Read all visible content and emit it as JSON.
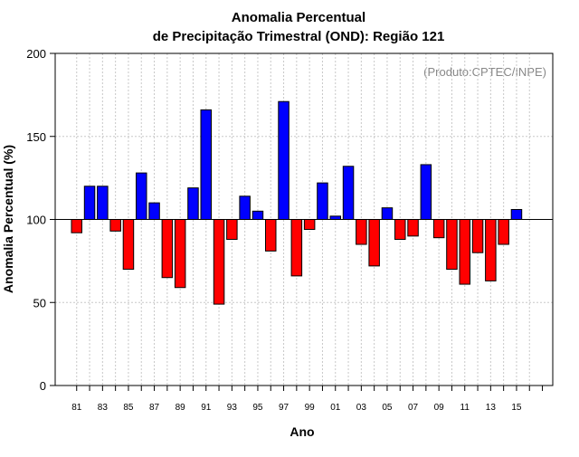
{
  "chart_data": {
    "type": "bar",
    "title": "Anomalia Percentual",
    "subtitle": "de Precipitação Trimestral (OND): Região 121",
    "xlabel": "Ano",
    "ylabel": "Anomalia Percentual (%)",
    "annotation": "(Produto:CPTEC/INPE)",
    "ylim": [
      0,
      200
    ],
    "yticks": [
      "0",
      "50",
      "100",
      "150",
      "200"
    ],
    "baseline": 100,
    "grid": true,
    "colors": {
      "above": "#0000ff",
      "below": "#ff0000",
      "grid": "#c8c8c8"
    },
    "categories": [
      "1981",
      "1982",
      "1983",
      "1984",
      "1985",
      "1986",
      "1987",
      "1988",
      "1989",
      "1990",
      "1991",
      "1992",
      "1993",
      "1994",
      "1995",
      "1996",
      "1997",
      "1998",
      "1999",
      "2000",
      "2001",
      "2002",
      "2003",
      "2004",
      "2005",
      "2006",
      "2007",
      "2008",
      "2009",
      "2010",
      "2011",
      "2012",
      "2013",
      "2014",
      "2015"
    ],
    "values": [
      92,
      120,
      120,
      93,
      70,
      128,
      110,
      65,
      59,
      119,
      166,
      49,
      88,
      114,
      105,
      81,
      171,
      66,
      94,
      122,
      102,
      132,
      85,
      72,
      107,
      88,
      90,
      133,
      89,
      70,
      61,
      80,
      63,
      85,
      106
    ],
    "tick_labels": [
      "81",
      "83",
      "85",
      "87",
      "89",
      "91",
      "93",
      "95",
      "97",
      "99",
      "01",
      "03",
      "05",
      "07",
      "09",
      "11",
      "13",
      "15"
    ]
  }
}
